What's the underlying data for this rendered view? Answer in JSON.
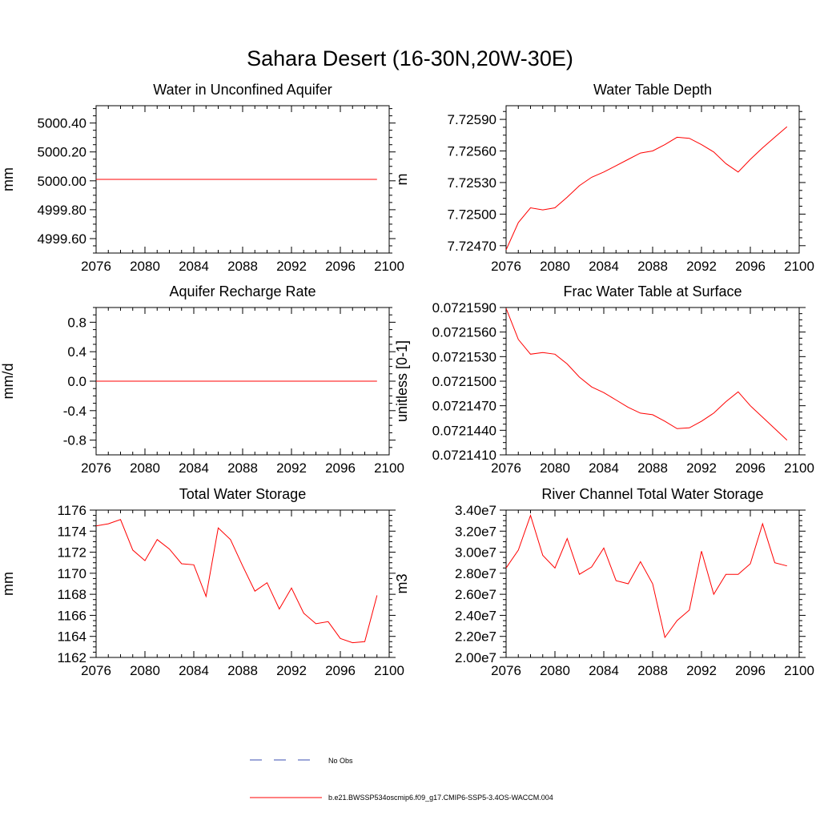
{
  "figure": {
    "title": "Sahara Desert (16-30N,20W-30E)"
  },
  "colors": {
    "series": "#ff0000",
    "obs": "#3a4fb0",
    "axis": "#000000"
  },
  "legend": {
    "obs_label": "No Obs",
    "model_label": "b.e21.BWSSP534oscmip6.f09_g17.CMIP6-SSP5-3.4OS-WACCM.004"
  },
  "chart_data": [
    {
      "type": "line",
      "title": "Water in Unconfined Aquifer",
      "ylabel": "mm",
      "xlim": [
        2076,
        2100
      ],
      "ylim": [
        4999.5,
        5000.52
      ],
      "xticks": [
        2076,
        2080,
        2084,
        2088,
        2092,
        2096,
        2100
      ],
      "yticks": [
        4999.6,
        4999.8,
        5000.0,
        5000.2,
        5000.4
      ],
      "ytick_labels": [
        "4999.60",
        "4999.80",
        "5000.00",
        "5000.20",
        "5000.40"
      ],
      "x": [
        2076,
        2077,
        2078,
        2079,
        2080,
        2081,
        2082,
        2083,
        2084,
        2085,
        2086,
        2087,
        2088,
        2089,
        2090,
        2091,
        2092,
        2093,
        2094,
        2095,
        2096,
        2097,
        2098,
        2099
      ],
      "values": [
        5000.01,
        5000.01,
        5000.01,
        5000.01,
        5000.01,
        5000.01,
        5000.01,
        5000.01,
        5000.01,
        5000.01,
        5000.01,
        5000.01,
        5000.01,
        5000.01,
        5000.01,
        5000.01,
        5000.01,
        5000.01,
        5000.01,
        5000.01,
        5000.01,
        5000.01,
        5000.01,
        5000.01
      ]
    },
    {
      "type": "line",
      "title": "Water Table Depth",
      "ylabel": "m",
      "xlim": [
        2076,
        2100
      ],
      "ylim": [
        7.72463,
        7.72603
      ],
      "xticks": [
        2076,
        2080,
        2084,
        2088,
        2092,
        2096,
        2100
      ],
      "yticks": [
        7.7247,
        7.725,
        7.7253,
        7.7256,
        7.7259
      ],
      "ytick_labels": [
        "7.72470",
        "7.72500",
        "7.72530",
        "7.72560",
        "7.72590"
      ],
      "x": [
        2076,
        2077,
        2078,
        2079,
        2080,
        2081,
        2082,
        2083,
        2084,
        2085,
        2086,
        2087,
        2088,
        2089,
        2090,
        2091,
        2092,
        2093,
        2094,
        2095,
        2096,
        2097,
        2098,
        2099
      ],
      "values": [
        7.72466,
        7.72492,
        7.72506,
        7.72504,
        7.72506,
        7.72516,
        7.72527,
        7.72535,
        7.7254,
        7.72546,
        7.72552,
        7.72558,
        7.7256,
        7.72566,
        7.72573,
        7.72572,
        7.72566,
        7.72559,
        7.72548,
        7.7254,
        7.72552,
        7.72563,
        7.72573,
        7.72583
      ]
    },
    {
      "type": "line",
      "title": "Aquifer Recharge Rate",
      "ylabel": "mm/d",
      "xlim": [
        2076,
        2100
      ],
      "ylim": [
        -1.0,
        1.0
      ],
      "xticks": [
        2076,
        2080,
        2084,
        2088,
        2092,
        2096,
        2100
      ],
      "yticks": [
        -0.8,
        -0.4,
        0.0,
        0.4,
        0.8
      ],
      "ytick_labels": [
        "-0.8",
        "-0.4",
        "0.0",
        "0.4",
        "0.8"
      ],
      "x": [
        2076,
        2077,
        2078,
        2079,
        2080,
        2081,
        2082,
        2083,
        2084,
        2085,
        2086,
        2087,
        2088,
        2089,
        2090,
        2091,
        2092,
        2093,
        2094,
        2095,
        2096,
        2097,
        2098,
        2099
      ],
      "values": [
        0,
        0,
        0,
        0,
        0,
        0,
        0,
        0,
        0,
        0,
        0,
        0,
        0,
        0,
        0,
        0,
        0,
        0,
        0,
        0,
        0,
        0,
        0,
        0
      ]
    },
    {
      "type": "line",
      "title": "Frac Water Table at Surface",
      "ylabel": "unitless [0-1]",
      "xlim": [
        2076,
        2100
      ],
      "ylim": [
        0.072141,
        0.072159
      ],
      "xticks": [
        2076,
        2080,
        2084,
        2088,
        2092,
        2096,
        2100
      ],
      "yticks": [
        0.072141,
        0.072144,
        0.072147,
        0.07215,
        0.072153,
        0.072156,
        0.072159
      ],
      "ytick_labels": [
        "0.0721410",
        "0.0721440",
        "0.0721470",
        "0.0721500",
        "0.0721530",
        "0.0721560",
        "0.0721590"
      ],
      "x": [
        2076,
        2077,
        2078,
        2079,
        2080,
        2081,
        2082,
        2083,
        2084,
        2085,
        2086,
        2087,
        2088,
        2089,
        2090,
        2091,
        2092,
        2093,
        2094,
        2095,
        2096,
        2097,
        2098,
        2099
      ],
      "values": [
        0.0721589,
        0.0721551,
        0.0721533,
        0.0721535,
        0.0721533,
        0.0721521,
        0.0721505,
        0.0721493,
        0.0721486,
        0.0721477,
        0.0721468,
        0.0721461,
        0.0721459,
        0.0721451,
        0.0721442,
        0.0721443,
        0.0721451,
        0.0721461,
        0.0721475,
        0.0721487,
        0.072147,
        0.0721456,
        0.0721442,
        0.0721428
      ]
    },
    {
      "type": "line",
      "title": "Total Water Storage",
      "ylabel": "mm",
      "xlim": [
        2076,
        2100
      ],
      "ylim": [
        1162,
        1176
      ],
      "xticks": [
        2076,
        2080,
        2084,
        2088,
        2092,
        2096,
        2100
      ],
      "yticks": [
        1162,
        1164,
        1166,
        1168,
        1170,
        1172,
        1174,
        1176
      ],
      "ytick_labels": [
        "1162",
        "1164",
        "1166",
        "1168",
        "1170",
        "1172",
        "1174",
        "1176"
      ],
      "x": [
        2076,
        2077,
        2078,
        2079,
        2080,
        2081,
        2082,
        2083,
        2084,
        2085,
        2086,
        2087,
        2088,
        2089,
        2090,
        2091,
        2092,
        2093,
        2094,
        2095,
        2096,
        2097,
        2098,
        2099
      ],
      "values": [
        1174.5,
        1174.7,
        1175.1,
        1172.2,
        1171.2,
        1173.2,
        1172.3,
        1170.9,
        1170.8,
        1167.8,
        1174.3,
        1173.2,
        1170.7,
        1168.3,
        1169.1,
        1166.6,
        1168.6,
        1166.2,
        1165.2,
        1165.4,
        1163.8,
        1163.4,
        1163.5,
        1167.9
      ]
    },
    {
      "type": "line",
      "title": "River Channel Total Water Storage",
      "ylabel": "m3",
      "xlim": [
        2076,
        2100
      ],
      "ylim": [
        20000000,
        34000000
      ],
      "xticks": [
        2076,
        2080,
        2084,
        2088,
        2092,
        2096,
        2100
      ],
      "yticks": [
        20000000,
        22000000,
        24000000,
        26000000,
        28000000,
        30000000,
        32000000,
        34000000
      ],
      "ytick_labels": [
        "2.00e7",
        "2.20e7",
        "2.40e7",
        "2.60e7",
        "2.80e7",
        "3.00e7",
        "3.20e7",
        "3.40e7"
      ],
      "x": [
        2076,
        2077,
        2078,
        2079,
        2080,
        2081,
        2082,
        2083,
        2084,
        2085,
        2086,
        2087,
        2088,
        2089,
        2090,
        2091,
        2092,
        2093,
        2094,
        2095,
        2096,
        2097,
        2098,
        2099
      ],
      "values": [
        28500000,
        30200000,
        33500000,
        29700000,
        28500000,
        31300000,
        27900000,
        28600000,
        30400000,
        27300000,
        27000000,
        29100000,
        27000000,
        21900000,
        23500000,
        24500000,
        30100000,
        26000000,
        27900000,
        27900000,
        28900000,
        32700000,
        29000000,
        28700000
      ]
    }
  ]
}
